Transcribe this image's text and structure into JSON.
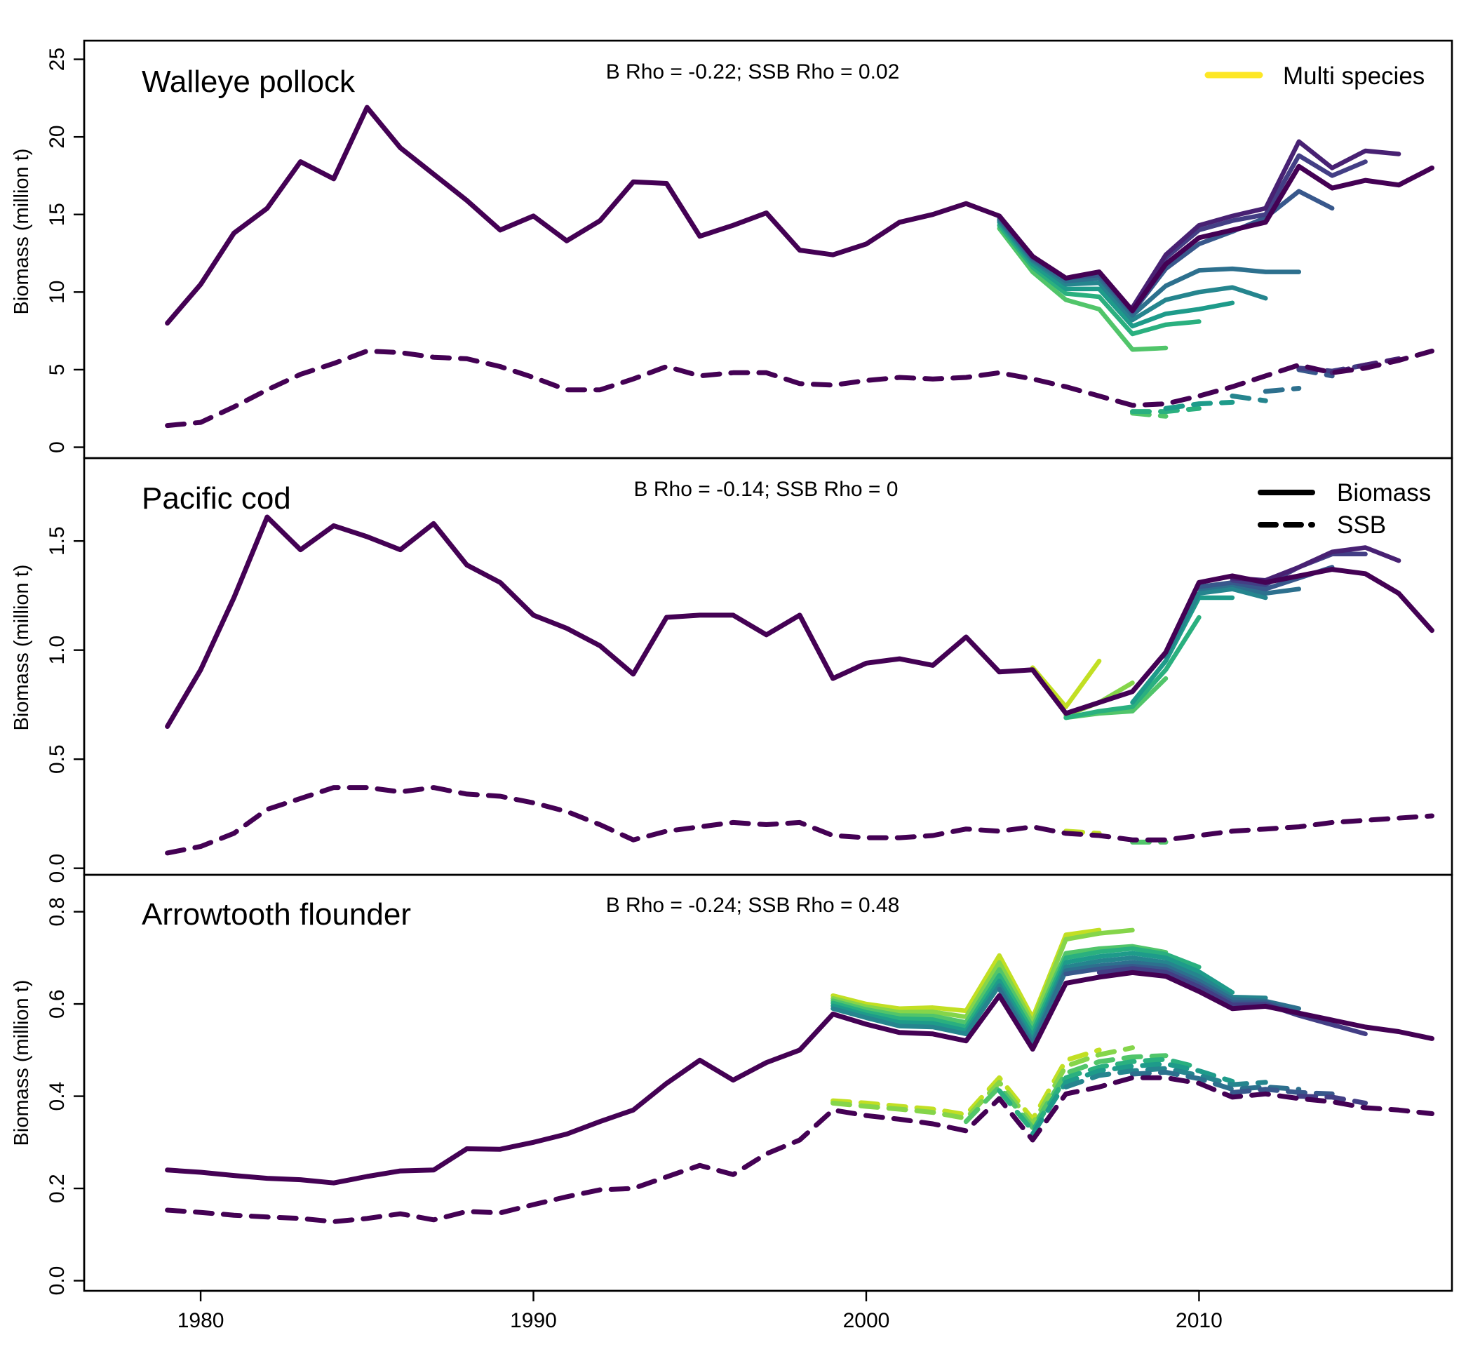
{
  "colors": {
    "retro": [
      "#FDE725",
      "#C2DF23",
      "#85D54A",
      "#51C56A",
      "#2AB07F",
      "#1E9B8A",
      "#25858E",
      "#2D708E",
      "#38588C",
      "#433E85",
      "#482173",
      "#440154"
    ]
  },
  "legends": {
    "multi_species": "Multi species",
    "biomass": "Biomass",
    "ssb": "SSB"
  },
  "chart_data": [
    {
      "type": "line",
      "title": "Walleye pollock",
      "annotation": "B Rho = -0.22; SSB Rho = 0.02",
      "ylabel": "Biomass (million t)",
      "xlim": [
        1976.5,
        2017.6
      ],
      "ylim": [
        -0.7,
        26.2
      ],
      "y_ticks": [
        0,
        5,
        10,
        15,
        20,
        25
      ],
      "y_tick_labels": [
        "0",
        "5",
        "10",
        "15",
        "20",
        "25"
      ],
      "years": [
        1979,
        1980,
        1981,
        1982,
        1983,
        1984,
        1985,
        1986,
        1987,
        1988,
        1989,
        1990,
        1991,
        1992,
        1993,
        1994,
        1995,
        1996,
        1997,
        1998,
        1999,
        2000,
        2001,
        2002,
        2003,
        2004,
        2005,
        2006,
        2007,
        2008,
        2009,
        2010,
        2011,
        2012,
        2013,
        2014,
        2015,
        2016,
        2017
      ],
      "biomass_base": [
        8.0,
        10.5,
        13.8,
        15.4,
        18.4,
        17.3,
        21.9,
        19.3,
        17.6,
        15.9,
        14.0,
        14.9,
        13.3,
        14.6,
        17.1,
        17.0,
        13.6,
        14.3,
        15.1,
        12.7,
        12.4,
        13.1,
        14.5,
        15.0,
        15.7,
        14.9,
        12.3,
        10.9,
        11.3,
        8.8,
        11.8,
        13.5,
        14.0,
        14.5,
        18.1,
        16.7,
        17.2,
        16.9,
        18.0
      ],
      "ssb_base": [
        1.4,
        1.6,
        2.6,
        3.7,
        4.7,
        5.4,
        6.2,
        6.1,
        5.8,
        5.7,
        5.2,
        4.5,
        3.7,
        3.7,
        4.4,
        5.2,
        4.6,
        4.8,
        4.8,
        4.1,
        4.0,
        4.3,
        4.5,
        4.4,
        4.5,
        4.8,
        4.4,
        3.9,
        3.3,
        2.7,
        2.8,
        3.3,
        3.9,
        4.6,
        5.3,
        4.8,
        5.1,
        5.6,
        6.2
      ],
      "biomass_retros": [
        {
          "end": 2009,
          "values": {
            "2004": 14.1,
            "2005": 11.3,
            "2006": 9.5,
            "2007": 8.9,
            "2008": 6.3,
            "2009": 6.4
          }
        },
        {
          "end": 2010,
          "values": {
            "2004": 14.3,
            "2005": 11.6,
            "2006": 9.9,
            "2007": 9.7,
            "2008": 7.3,
            "2009": 7.9,
            "2010": 8.1
          }
        },
        {
          "end": 2011,
          "values": {
            "2004": 14.5,
            "2005": 11.8,
            "2006": 10.2,
            "2007": 10.2,
            "2008": 7.8,
            "2009": 8.6,
            "2010": 8.9,
            "2011": 9.3
          }
        },
        {
          "end": 2012,
          "values": {
            "2004": 14.6,
            "2005": 12.0,
            "2006": 10.5,
            "2007": 10.6,
            "2008": 8.2,
            "2009": 9.5,
            "2010": 10.0,
            "2011": 10.3,
            "2012": 9.6
          }
        },
        {
          "end": 2013,
          "values": {
            "2004": 14.7,
            "2005": 12.1,
            "2006": 10.7,
            "2007": 10.9,
            "2008": 8.5,
            "2009": 10.4,
            "2010": 11.4,
            "2011": 11.5,
            "2012": 11.3,
            "2013": 11.3
          }
        },
        {
          "end": 2014,
          "values": {
            "2004": 14.8,
            "2005": 12.2,
            "2006": 10.9,
            "2007": 11.1,
            "2008": 8.7,
            "2009": 11.5,
            "2010": 13.1,
            "2011": 13.9,
            "2012": 14.8,
            "2013": 16.5,
            "2014": 15.4
          }
        },
        {
          "end": 2015,
          "values": {
            "2008": 8.9,
            "2009": 12.2,
            "2010": 14.0,
            "2011": 14.6,
            "2012": 15.0,
            "2013": 18.8,
            "2014": 17.5,
            "2015": 18.4
          }
        },
        {
          "end": 2016,
          "values": {
            "2008": 9.0,
            "2009": 12.4,
            "2010": 14.3,
            "2011": 14.9,
            "2012": 15.4,
            "2013": 19.7,
            "2014": 18.0,
            "2015": 19.1,
            "2016": 18.9
          }
        }
      ],
      "ssb_retros": [
        {
          "end": 2009,
          "values": {
            "2008": 2.2,
            "2009": 2.0
          }
        },
        {
          "end": 2010,
          "values": {
            "2008": 2.3,
            "2009": 2.3,
            "2010": 2.5
          }
        },
        {
          "end": 2011,
          "values": {
            "2009": 2.5,
            "2010": 2.8,
            "2011": 2.9
          }
        },
        {
          "end": 2012,
          "values": {
            "2011": 3.3,
            "2012": 3.0
          }
        },
        {
          "end": 2013,
          "values": {
            "2012": 3.6,
            "2013": 3.8
          }
        },
        {
          "end": 2014,
          "values": {
            "2013": 5.0,
            "2014": 4.6
          }
        },
        {
          "end": 2015,
          "values": {
            "2013": 5.1,
            "2014": 4.9,
            "2015": 5.3
          }
        },
        {
          "end": 2016,
          "values": {
            "2014": 4.8,
            "2015": 5.3,
            "2016": 5.7
          }
        }
      ]
    },
    {
      "type": "line",
      "title": "Pacific cod",
      "annotation": "B Rho = -0.14; SSB Rho = 0",
      "ylabel": "Biomass (million t)",
      "xlim": [
        1976.5,
        2017.6
      ],
      "ylim": [
        -0.03,
        1.88
      ],
      "y_ticks": [
        0.0,
        0.5,
        1.0,
        1.5
      ],
      "y_tick_labels": [
        "0.0",
        "0.5",
        "1.0",
        "1.5"
      ],
      "years": [
        1979,
        1980,
        1981,
        1982,
        1983,
        1984,
        1985,
        1986,
        1987,
        1988,
        1989,
        1990,
        1991,
        1992,
        1993,
        1994,
        1995,
        1996,
        1997,
        1998,
        1999,
        2000,
        2001,
        2002,
        2003,
        2004,
        2005,
        2006,
        2007,
        2008,
        2009,
        2010,
        2011,
        2012,
        2013,
        2014,
        2015,
        2016,
        2017
      ],
      "biomass_base": [
        0.65,
        0.91,
        1.24,
        1.61,
        1.46,
        1.57,
        1.52,
        1.46,
        1.58,
        1.39,
        1.31,
        1.16,
        1.1,
        1.02,
        0.89,
        1.15,
        1.16,
        1.16,
        1.07,
        1.16,
        0.87,
        0.94,
        0.96,
        0.93,
        1.06,
        0.9,
        0.91,
        0.71,
        0.76,
        0.81,
        0.99,
        1.31,
        1.34,
        1.31,
        1.34,
        1.37,
        1.35,
        1.26,
        1.09
      ],
      "ssb_base": [
        0.07,
        0.1,
        0.16,
        0.27,
        0.32,
        0.37,
        0.37,
        0.35,
        0.37,
        0.34,
        0.33,
        0.3,
        0.26,
        0.2,
        0.13,
        0.17,
        0.19,
        0.21,
        0.2,
        0.21,
        0.15,
        0.14,
        0.14,
        0.15,
        0.18,
        0.17,
        0.19,
        0.16,
        0.15,
        0.13,
        0.13,
        0.15,
        0.17,
        0.18,
        0.19,
        0.21,
        0.22,
        0.23,
        0.24
      ],
      "biomass_retros": [
        {
          "end": 2007,
          "values": {
            "2005": 0.92,
            "2006": 0.74,
            "2007": 0.95
          }
        },
        {
          "end": 2008,
          "values": {
            "2006": 0.7,
            "2007": 0.76,
            "2008": 0.85
          }
        },
        {
          "end": 2009,
          "values": {
            "2006": 0.69,
            "2007": 0.71,
            "2008": 0.72,
            "2009": 0.87
          }
        },
        {
          "end": 2010,
          "values": {
            "2006": 0.69,
            "2007": 0.72,
            "2008": 0.74,
            "2009": 0.91,
            "2010": 1.15
          }
        },
        {
          "end": 2011,
          "values": {
            "2008": 0.76,
            "2009": 0.95,
            "2010": 1.24,
            "2011": 1.24
          }
        },
        {
          "end": 2012,
          "values": {
            "2009": 0.97,
            "2010": 1.26,
            "2011": 1.28,
            "2012": 1.24
          }
        },
        {
          "end": 2013,
          "values": {
            "2010": 1.28,
            "2011": 1.3,
            "2012": 1.26,
            "2013": 1.28
          }
        },
        {
          "end": 2014,
          "values": {
            "2010": 1.29,
            "2011": 1.31,
            "2012": 1.28,
            "2013": 1.33,
            "2014": 1.38
          }
        },
        {
          "end": 2015,
          "values": {
            "2011": 1.32,
            "2012": 1.3,
            "2013": 1.38,
            "2014": 1.44,
            "2015": 1.44
          }
        },
        {
          "end": 2016,
          "values": {
            "2011": 1.33,
            "2012": 1.32,
            "2013": 1.38,
            "2014": 1.45,
            "2015": 1.47,
            "2016": 1.41
          }
        }
      ],
      "ssb_retros": [
        {
          "end": 2007,
          "values": {
            "2006": 0.17,
            "2007": 0.16
          }
        },
        {
          "end": 2009,
          "values": {
            "2008": 0.12,
            "2009": 0.12
          }
        }
      ]
    },
    {
      "type": "line",
      "title": "Arrowtooth flounder",
      "annotation": "B Rho = -0.24; SSB Rho = 0.48",
      "ylabel": "Biomass (million t)",
      "xlim": [
        1976.5,
        2017.6
      ],
      "ylim": [
        -0.022,
        0.88
      ],
      "y_ticks": [
        0.0,
        0.2,
        0.4,
        0.6,
        0.8
      ],
      "y_tick_labels": [
        "0.0",
        "0.2",
        "0.4",
        "0.6",
        "0.8"
      ],
      "years": [
        1979,
        1980,
        1981,
        1982,
        1983,
        1984,
        1985,
        1986,
        1987,
        1988,
        1989,
        1990,
        1991,
        1992,
        1993,
        1994,
        1995,
        1996,
        1997,
        1998,
        1999,
        2000,
        2001,
        2002,
        2003,
        2004,
        2005,
        2006,
        2007,
        2008,
        2009,
        2010,
        2011,
        2012,
        2013,
        2014,
        2015,
        2016,
        2017
      ],
      "biomass_base": [
        0.24,
        0.235,
        0.228,
        0.222,
        0.219,
        0.212,
        0.226,
        0.238,
        0.24,
        0.286,
        0.285,
        0.3,
        0.318,
        0.345,
        0.37,
        0.428,
        0.478,
        0.435,
        0.473,
        0.5,
        0.578,
        0.556,
        0.538,
        0.535,
        0.52,
        0.618,
        0.502,
        0.645,
        0.658,
        0.668,
        0.66,
        0.627,
        0.59,
        0.595,
        0.58,
        0.565,
        0.55,
        0.54,
        0.525
      ],
      "ssb_base": [
        0.153,
        0.148,
        0.142,
        0.138,
        0.135,
        0.128,
        0.135,
        0.145,
        0.132,
        0.15,
        0.147,
        0.165,
        0.182,
        0.197,
        0.2,
        0.225,
        0.25,
        0.23,
        0.275,
        0.305,
        0.37,
        0.358,
        0.35,
        0.34,
        0.325,
        0.395,
        0.305,
        0.405,
        0.42,
        0.44,
        0.44,
        0.428,
        0.398,
        0.405,
        0.395,
        0.388,
        0.375,
        0.37,
        0.362
      ],
      "biomass_retros": [
        {
          "end": 2007,
          "values": {
            "1999": 0.618,
            "2000": 0.6,
            "2001": 0.59,
            "2002": 0.592,
            "2003": 0.585,
            "2004": 0.705,
            "2005": 0.57,
            "2006": 0.75,
            "2007": 0.76
          }
        },
        {
          "end": 2008,
          "values": {
            "1999": 0.612,
            "2000": 0.594,
            "2001": 0.582,
            "2002": 0.583,
            "2003": 0.572,
            "2004": 0.69,
            "2005": 0.56,
            "2006": 0.74,
            "2007": 0.753,
            "2008": 0.76
          }
        },
        {
          "end": 2009,
          "values": {
            "1999": 0.607,
            "2000": 0.588,
            "2001": 0.575,
            "2002": 0.574,
            "2003": 0.56,
            "2004": 0.675,
            "2005": 0.55,
            "2006": 0.71,
            "2007": 0.72,
            "2008": 0.725,
            "2009": 0.712
          }
        },
        {
          "end": 2010,
          "values": {
            "1999": 0.602,
            "2000": 0.582,
            "2001": 0.568,
            "2002": 0.566,
            "2003": 0.55,
            "2004": 0.662,
            "2005": 0.54,
            "2006": 0.7,
            "2007": 0.713,
            "2008": 0.72,
            "2009": 0.708,
            "2010": 0.68
          }
        },
        {
          "end": 2011,
          "values": {
            "1999": 0.596,
            "2000": 0.576,
            "2001": 0.56,
            "2002": 0.558,
            "2003": 0.542,
            "2004": 0.65,
            "2005": 0.53,
            "2006": 0.69,
            "2007": 0.703,
            "2008": 0.71,
            "2009": 0.7,
            "2010": 0.67,
            "2011": 0.625
          }
        },
        {
          "end": 2012,
          "values": {
            "1999": 0.59,
            "2000": 0.57,
            "2001": 0.552,
            "2002": 0.55,
            "2003": 0.535,
            "2004": 0.64,
            "2005": 0.52,
            "2006": 0.68,
            "2007": 0.693,
            "2008": 0.7,
            "2009": 0.69,
            "2010": 0.66,
            "2011": 0.615,
            "2012": 0.613
          }
        },
        {
          "end": 2013,
          "values": {
            "2004": 0.632,
            "2005": 0.512,
            "2006": 0.672,
            "2007": 0.683,
            "2008": 0.69,
            "2009": 0.682,
            "2010": 0.65,
            "2011": 0.61,
            "2012": 0.606,
            "2013": 0.59
          }
        },
        {
          "end": 2014,
          "values": {
            "2006": 0.665,
            "2007": 0.676,
            "2008": 0.682,
            "2009": 0.675,
            "2010": 0.643,
            "2011": 0.603,
            "2012": 0.603,
            "2013": 0.58,
            "2014": 0.56
          }
        },
        {
          "end": 2015,
          "values": {
            "2007": 0.668,
            "2008": 0.677,
            "2009": 0.669,
            "2010": 0.637,
            "2011": 0.598,
            "2012": 0.599,
            "2013": 0.575,
            "2014": 0.555,
            "2015": 0.535
          }
        }
      ],
      "ssb_retros": [
        {
          "end": 2007,
          "values": {
            "1999": 0.39,
            "2000": 0.385,
            "2001": 0.378,
            "2002": 0.372,
            "2003": 0.36,
            "2004": 0.44,
            "2005": 0.35,
            "2006": 0.478,
            "2007": 0.5
          }
        },
        {
          "end": 2008,
          "values": {
            "1999": 0.385,
            "2000": 0.378,
            "2001": 0.372,
            "2002": 0.365,
            "2003": 0.352,
            "2004": 0.43,
            "2005": 0.34,
            "2006": 0.465,
            "2007": 0.49,
            "2008": 0.505
          }
        },
        {
          "end": 2009,
          "values": {
            "2003": 0.345,
            "2004": 0.42,
            "2005": 0.332,
            "2006": 0.45,
            "2007": 0.475,
            "2008": 0.485,
            "2009": 0.488
          }
        },
        {
          "end": 2010,
          "values": {
            "2004": 0.412,
            "2005": 0.325,
            "2006": 0.44,
            "2007": 0.463,
            "2008": 0.475,
            "2009": 0.48,
            "2010": 0.462
          }
        },
        {
          "end": 2011,
          "values": {
            "2005": 0.318,
            "2006": 0.43,
            "2007": 0.455,
            "2008": 0.465,
            "2009": 0.47,
            "2010": 0.455,
            "2011": 0.432
          }
        },
        {
          "end": 2012,
          "values": {
            "2006": 0.42,
            "2007": 0.445,
            "2008": 0.455,
            "2009": 0.46,
            "2010": 0.445,
            "2011": 0.425,
            "2012": 0.43
          }
        },
        {
          "end": 2013,
          "values": {
            "2008": 0.448,
            "2009": 0.452,
            "2010": 0.438,
            "2011": 0.415,
            "2012": 0.42,
            "2013": 0.415
          }
        },
        {
          "end": 2014,
          "values": {
            "2011": 0.408,
            "2012": 0.415,
            "2013": 0.408,
            "2014": 0.405
          }
        },
        {
          "end": 2015,
          "values": {
            "2013": 0.4,
            "2014": 0.398,
            "2015": 0.385
          }
        }
      ]
    }
  ],
  "x_axis": {
    "ticks": [
      1980,
      1990,
      2000,
      2010
    ],
    "tick_labels": [
      "1980",
      "1990",
      "2000",
      "2010"
    ]
  }
}
